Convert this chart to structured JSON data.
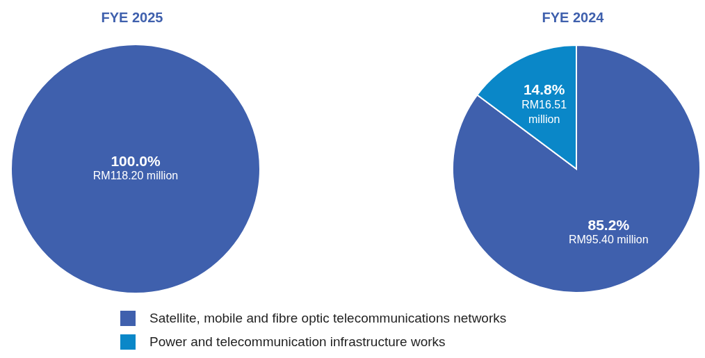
{
  "chart_data": [
    {
      "type": "pie",
      "title": "FYE 2025",
      "categories": [
        null
      ],
      "values": [
        100.0
      ],
      "colors": [
        "#3f60ad"
      ],
      "value_labels": [
        "100.0%\nRM118.20 million"
      ]
    },
    {
      "type": "pie",
      "title": "FYE 2024",
      "categories": [
        "Satellite, mobile and fibre optic telecommunications networks",
        "Power and telecommunication infrastructure works"
      ],
      "values": [
        85.2,
        14.8
      ],
      "colors": [
        "#3f60ad",
        "#0a87c8"
      ],
      "value_labels": [
        "85.2%\nRM95.40 million",
        "14.8%\nRM16.51\nmillion"
      ],
      "legend": "bottom"
    }
  ]
}
